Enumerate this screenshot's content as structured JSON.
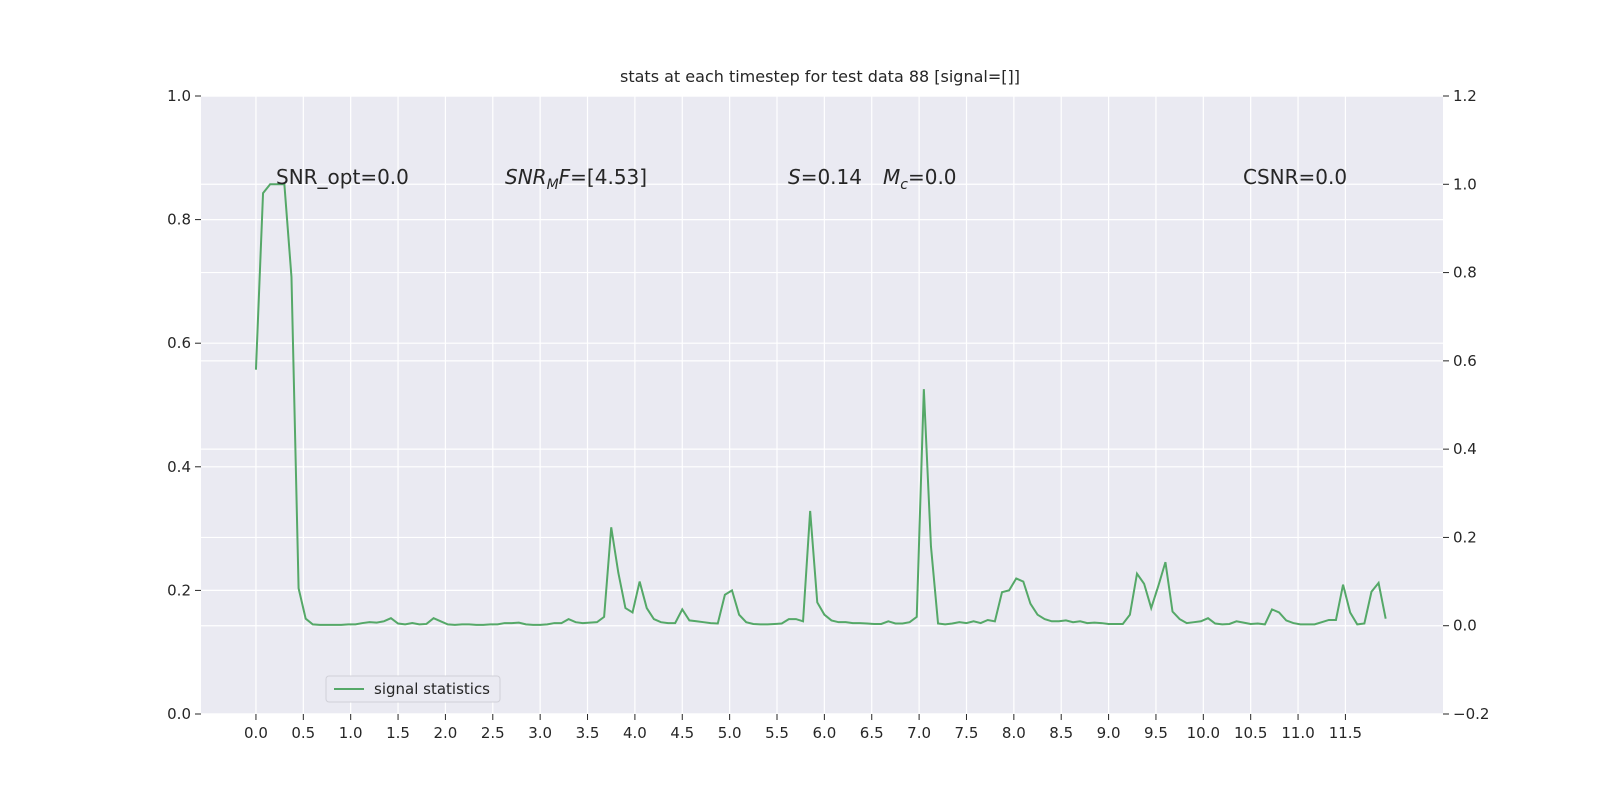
{
  "chart_data": {
    "type": "line",
    "title": "stats at each timestep for test data 88 [signal=[]]",
    "x": [
      0,
      0.075,
      0.15,
      0.225,
      0.3,
      0.375,
      0.45,
      0.525,
      0.6,
      0.675,
      0.75,
      0.825,
      0.9,
      0.975,
      1.05,
      1.125,
      1.2,
      1.275,
      1.35,
      1.425,
      1.5,
      1.575,
      1.65,
      1.725,
      1.8,
      1.875,
      1.95,
      2.025,
      2.1,
      2.175,
      2.25,
      2.325,
      2.4,
      2.475,
      2.55,
      2.625,
      2.7,
      2.775,
      2.85,
      2.925,
      3,
      3.075,
      3.15,
      3.225,
      3.3,
      3.375,
      3.45,
      3.525,
      3.6,
      3.675,
      3.75,
      3.825,
      3.9,
      3.975,
      4.05,
      4.125,
      4.2,
      4.275,
      4.35,
      4.425,
      4.5,
      4.575,
      4.65,
      4.725,
      4.8,
      4.875,
      4.95,
      5.025,
      5.1,
      5.175,
      5.25,
      5.325,
      5.4,
      5.475,
      5.55,
      5.625,
      5.7,
      5.775,
      5.85,
      5.925,
      6,
      6.075,
      6.15,
      6.225,
      6.3,
      6.375,
      6.45,
      6.525,
      6.6,
      6.675,
      6.75,
      6.825,
      6.9,
      6.975,
      7.05,
      7.125,
      7.2,
      7.275,
      7.35,
      7.425,
      7.5,
      7.575,
      7.65,
      7.725,
      7.8,
      7.875,
      7.95,
      8.025,
      8.1,
      8.175,
      8.25,
      8.325,
      8.4,
      8.475,
      8.55,
      8.625,
      8.7,
      8.775,
      8.85,
      8.925,
      9,
      9.075,
      9.15,
      9.225,
      9.3,
      9.375,
      9.45,
      9.525,
      9.6,
      9.675,
      9.75,
      9.825,
      9.9,
      9.975,
      10.05,
      10.125,
      10.2,
      10.275,
      10.35,
      10.425,
      10.5,
      10.575,
      10.65,
      10.725,
      10.8,
      10.875,
      10.95,
      11.025,
      11.1,
      11.175,
      11.25,
      11.325,
      11.4,
      11.475,
      11.55,
      11.625,
      11.7,
      11.775,
      11.85,
      11.925
    ],
    "series": [
      {
        "name": "signal statistics",
        "color": "#55a868",
        "axis": "y2",
        "values": [
          0.58,
          0.98,
          1.0,
          1.0,
          1.0,
          0.79,
          0.085,
          0.016,
          0.003,
          0.002,
          0.002,
          0.002,
          0.002,
          0.003,
          0.003,
          0.006,
          0.008,
          0.007,
          0.01,
          0.017,
          0.005,
          0.003,
          0.006,
          0.003,
          0.004,
          0.017,
          0.01,
          0.003,
          0.002,
          0.003,
          0.003,
          0.002,
          0.002,
          0.003,
          0.003,
          0.006,
          0.006,
          0.007,
          0.003,
          0.002,
          0.002,
          0.003,
          0.006,
          0.006,
          0.015,
          0.008,
          0.006,
          0.007,
          0.008,
          0.02,
          0.223,
          0.12,
          0.04,
          0.03,
          0.1,
          0.04,
          0.015,
          0.008,
          0.006,
          0.006,
          0.037,
          0.012,
          0.01,
          0.008,
          0.006,
          0.005,
          0.07,
          0.08,
          0.025,
          0.008,
          0.004,
          0.003,
          0.003,
          0.004,
          0.005,
          0.015,
          0.015,
          0.01,
          0.26,
          0.053,
          0.025,
          0.012,
          0.008,
          0.008,
          0.006,
          0.006,
          0.005,
          0.004,
          0.004,
          0.01,
          0.005,
          0.005,
          0.008,
          0.02,
          0.536,
          0.18,
          0.005,
          0.003,
          0.005,
          0.008,
          0.006,
          0.01,
          0.006,
          0.013,
          0.01,
          0.076,
          0.08,
          0.107,
          0.1,
          0.05,
          0.025,
          0.015,
          0.01,
          0.01,
          0.012,
          0.008,
          0.01,
          0.006,
          0.007,
          0.006,
          0.004,
          0.004,
          0.004,
          0.025,
          0.118,
          0.095,
          0.04,
          0.09,
          0.144,
          0.032,
          0.015,
          0.006,
          0.008,
          0.01,
          0.017,
          0.005,
          0.003,
          0.004,
          0.01,
          0.007,
          0.004,
          0.005,
          0.003,
          0.037,
          0.03,
          0.012,
          0.006,
          0.003,
          0.003,
          0.003,
          0.008,
          0.013,
          0.013,
          0.093,
          0.03,
          0.003,
          0.005,
          0.077,
          0.097,
          0.016
        ]
      }
    ],
    "xlim": [
      -0.58,
      12.53
    ],
    "xticks": [
      {
        "value": 0,
        "label": "0.0"
      },
      0.5,
      {
        "value": 1,
        "label": "1.0"
      },
      1.5,
      {
        "value": 2,
        "label": "2.0"
      },
      2.5,
      {
        "value": 3,
        "label": "3.0"
      },
      3.5,
      {
        "value": 4,
        "label": "4.0"
      },
      4.5,
      {
        "value": 5,
        "label": "5.0"
      },
      5.5,
      {
        "value": 6,
        "label": "6.0"
      },
      6.5,
      {
        "value": 7,
        "label": "7.0"
      },
      7.5,
      {
        "value": 8,
        "label": "8.0"
      },
      8.5,
      {
        "value": 9,
        "label": "9.0"
      },
      9.5,
      {
        "value": 10,
        "label": "10.0"
      },
      10.5,
      {
        "value": 11,
        "label": "11.0"
      },
      11.5
    ],
    "ylim": [
      0,
      1
    ],
    "yticks": [
      {
        "value": 0,
        "label": "0.0"
      },
      0.2,
      0.4,
      0.6,
      0.8,
      {
        "value": 1,
        "label": "1.0"
      }
    ],
    "y2lim": [
      -0.2,
      1.2
    ],
    "y2ticks": [
      {
        "value": -0.2,
        "label": "−0.2"
      },
      {
        "value": 0,
        "label": "0.0"
      },
      0.2,
      0.4,
      0.6,
      0.8,
      {
        "value": 1,
        "label": "1.0"
      },
      1.2
    ],
    "grid": true,
    "background": "#eaeaf2",
    "legend": "lower left",
    "annotations": [
      [
        {
          "text": "SNR_opt=0.0",
          "style": "normal"
        }
      ],
      [
        {
          "text": "SNR",
          "style": "italic"
        },
        {
          "text": "M",
          "style": "italic-sub"
        },
        {
          "text": "F",
          "style": "italic"
        },
        {
          "text": "=[4.53]",
          "style": "normal"
        }
      ],
      [
        {
          "text": "S",
          "style": "italic"
        },
        {
          "text": "=0.14",
          "style": "normal"
        }
      ],
      [
        {
          "text": "M",
          "style": "italic"
        },
        {
          "text": "c",
          "style": "italic-sub"
        },
        {
          "text": "=0.0",
          "style": "normal"
        }
      ],
      [
        {
          "text": "CSNR=0.0",
          "style": "normal"
        }
      ]
    ]
  }
}
